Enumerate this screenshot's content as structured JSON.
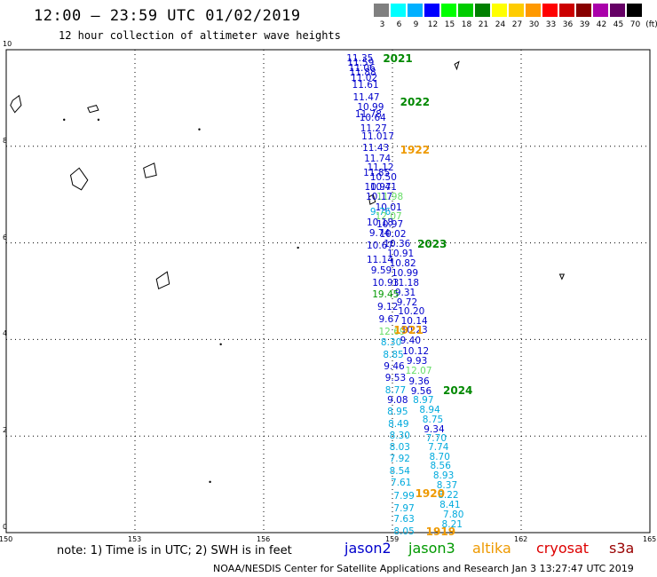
{
  "title": "12:00 — 23:59 UTC 01/02/2019",
  "subtitle": "12 hour collection of altimeter wave heights",
  "colorbar": {
    "unit_label": "(ft)",
    "bins": [
      {
        "label": "3",
        "color": "#808080"
      },
      {
        "label": "6",
        "color": "#00ffff"
      },
      {
        "label": "9",
        "color": "#00b0ff"
      },
      {
        "label": "12",
        "color": "#0000ff"
      },
      {
        "label": "15",
        "color": "#00ff00"
      },
      {
        "label": "18",
        "color": "#00cc00"
      },
      {
        "label": "21",
        "color": "#008000"
      },
      {
        "label": "24",
        "color": "#ffff00"
      },
      {
        "label": "27",
        "color": "#ffcc00"
      },
      {
        "label": "30",
        "color": "#ff9900"
      },
      {
        "label": "33",
        "color": "#ff0000"
      },
      {
        "label": "36",
        "color": "#cc0000"
      },
      {
        "label": "39",
        "color": "#880000"
      },
      {
        "label": "42",
        "color": "#aa00aa"
      },
      {
        "label": "45",
        "color": "#660066"
      },
      {
        "label": "70",
        "color": "#000000"
      }
    ]
  },
  "axes": {
    "lon_ticks": [
      "150",
      "153",
      "156",
      "159",
      "162",
      "165"
    ],
    "lat_ticks": [
      "0",
      "2",
      "4",
      "6",
      "8",
      "10"
    ]
  },
  "readings": [
    {
      "lon": 157.95,
      "lat": 9.82,
      "v": "11.35",
      "c": "#0000cc"
    },
    {
      "lon": 157.97,
      "lat": 9.72,
      "v": "11.59",
      "c": "#0000cc"
    },
    {
      "lon": 158.0,
      "lat": 9.62,
      "v": "11.06",
      "c": "#0000cc"
    },
    {
      "lon": 158.02,
      "lat": 9.52,
      "v": "11.88",
      "c": "#0000cc"
    },
    {
      "lon": 158.05,
      "lat": 9.42,
      "v": "11.02",
      "c": "#0000cc"
    },
    {
      "lon": 158.08,
      "lat": 9.27,
      "v": "11.61",
      "c": "#0000cc"
    },
    {
      "lon": 158.1,
      "lat": 9.0,
      "v": "11.47",
      "c": "#0000cc"
    },
    {
      "lon": 158.2,
      "lat": 8.8,
      "v": "10.99",
      "c": "#0000cc"
    },
    {
      "lon": 158.15,
      "lat": 8.65,
      "v": "11.78",
      "c": "#0000cc"
    },
    {
      "lon": 158.25,
      "lat": 8.58,
      "v": "10.64",
      "c": "#0000cc"
    },
    {
      "lon": 158.27,
      "lat": 8.37,
      "v": "11.27",
      "c": "#0000cc"
    },
    {
      "lon": 158.3,
      "lat": 8.2,
      "v": "11.017",
      "c": "#0000cc"
    },
    {
      "lon": 158.32,
      "lat": 7.96,
      "v": "11.43",
      "c": "#0000cc"
    },
    {
      "lon": 158.36,
      "lat": 7.73,
      "v": "11.74",
      "c": "#0000cc"
    },
    {
      "lon": 158.43,
      "lat": 7.55,
      "v": "11.12",
      "c": "#0000cc"
    },
    {
      "lon": 158.34,
      "lat": 7.45,
      "v": "11.85",
      "c": "#0000cc"
    },
    {
      "lon": 158.5,
      "lat": 7.35,
      "v": "10.50",
      "c": "#0000cc"
    },
    {
      "lon": 158.5,
      "lat": 7.15,
      "v": "10.41",
      "c": "#0000cc"
    },
    {
      "lon": 158.37,
      "lat": 7.15,
      "v": "10.97",
      "c": "#0000cc"
    },
    {
      "lon": 158.65,
      "lat": 6.95,
      "v": "11.98",
      "c": "#66dd66"
    },
    {
      "lon": 158.4,
      "lat": 6.95,
      "v": "10.17",
      "c": "#0000cc"
    },
    {
      "lon": 158.62,
      "lat": 6.73,
      "v": "10.01",
      "c": "#0000cc"
    },
    {
      "lon": 158.5,
      "lat": 6.63,
      "v": "9.76",
      "c": "#00aadd"
    },
    {
      "lon": 158.62,
      "lat": 6.55,
      "v": "12.07",
      "c": "#66dd66"
    },
    {
      "lon": 158.65,
      "lat": 6.37,
      "v": "10.97",
      "c": "#0000cc"
    },
    {
      "lon": 158.42,
      "lat": 6.41,
      "v": "10.18",
      "c": "#0000cc"
    },
    {
      "lon": 158.72,
      "lat": 6.17,
      "v": "10.02",
      "c": "#0000cc"
    },
    {
      "lon": 158.48,
      "lat": 6.2,
      "v": "9.74",
      "c": "#0000cc"
    },
    {
      "lon": 158.82,
      "lat": 5.97,
      "v": "10.36",
      "c": "#0000cc"
    },
    {
      "lon": 158.42,
      "lat": 5.93,
      "v": "10.67",
      "c": "#0000cc"
    },
    {
      "lon": 158.9,
      "lat": 5.77,
      "v": "10.91",
      "c": "#0000cc"
    },
    {
      "lon": 158.42,
      "lat": 5.65,
      "v": "11.14",
      "c": "#0000cc"
    },
    {
      "lon": 158.95,
      "lat": 5.57,
      "v": "10.82",
      "c": "#0000cc"
    },
    {
      "lon": 158.52,
      "lat": 5.42,
      "v": "9.59",
      "c": "#0000cc"
    },
    {
      "lon": 159.0,
      "lat": 5.37,
      "v": "10.99",
      "c": "#0000cc"
    },
    {
      "lon": 159.02,
      "lat": 5.17,
      "v": "11.18",
      "c": "#0000cc"
    },
    {
      "lon": 158.55,
      "lat": 5.17,
      "v": "10.93",
      "c": "#0000cc"
    },
    {
      "lon": 159.08,
      "lat": 4.97,
      "v": "9.31",
      "c": "#0000cc"
    },
    {
      "lon": 158.55,
      "lat": 4.93,
      "v": "19.45",
      "c": "#009900"
    },
    {
      "lon": 159.12,
      "lat": 4.77,
      "v": "9.72",
      "c": "#0000cc"
    },
    {
      "lon": 158.67,
      "lat": 4.67,
      "v": "9.12",
      "c": "#0000cc"
    },
    {
      "lon": 159.15,
      "lat": 4.57,
      "v": "10.20",
      "c": "#0000cc"
    },
    {
      "lon": 158.7,
      "lat": 4.42,
      "v": "9.67",
      "c": "#0000cc"
    },
    {
      "lon": 159.22,
      "lat": 4.37,
      "v": "10.14",
      "c": "#0000cc"
    },
    {
      "lon": 158.7,
      "lat": 4.15,
      "v": "12.69",
      "c": "#66dd66"
    },
    {
      "lon": 159.22,
      "lat": 4.2,
      "v": "10.23",
      "c": "#0000cc"
    },
    {
      "lon": 158.75,
      "lat": 3.93,
      "v": "8.30",
      "c": "#00aadd"
    },
    {
      "lon": 159.2,
      "lat": 3.97,
      "v": "9.40",
      "c": "#0000cc"
    },
    {
      "lon": 159.25,
      "lat": 3.75,
      "v": "10.12",
      "c": "#0000cc"
    },
    {
      "lon": 158.8,
      "lat": 3.68,
      "v": "8.85",
      "c": "#00aadd"
    },
    {
      "lon": 159.35,
      "lat": 3.55,
      "v": "9.93",
      "c": "#0000cc"
    },
    {
      "lon": 158.82,
      "lat": 3.43,
      "v": "9.46",
      "c": "#0000cc"
    },
    {
      "lon": 159.32,
      "lat": 3.35,
      "v": "12.07",
      "c": "#66dd66"
    },
    {
      "lon": 158.85,
      "lat": 3.2,
      "v": "9.53",
      "c": "#0000cc"
    },
    {
      "lon": 159.4,
      "lat": 3.13,
      "v": "9.36",
      "c": "#0000cc"
    },
    {
      "lon": 158.85,
      "lat": 2.95,
      "v": "8.77",
      "c": "#00aadd"
    },
    {
      "lon": 159.45,
      "lat": 2.93,
      "v": "9.56",
      "c": "#0000cc"
    },
    {
      "lon": 158.9,
      "lat": 2.73,
      "v": "9.08",
      "c": "#0000cc"
    },
    {
      "lon": 159.5,
      "lat": 2.73,
      "v": "8.97",
      "c": "#00aadd"
    },
    {
      "lon": 158.9,
      "lat": 2.5,
      "v": "8.95",
      "c": "#00aadd"
    },
    {
      "lon": 159.65,
      "lat": 2.53,
      "v": "8.94",
      "c": "#00aadd"
    },
    {
      "lon": 159.72,
      "lat": 2.33,
      "v": "8.75",
      "c": "#00aadd"
    },
    {
      "lon": 158.92,
      "lat": 2.25,
      "v": "8.49",
      "c": "#00aadd"
    },
    {
      "lon": 159.75,
      "lat": 2.13,
      "v": "9.34",
      "c": "#0000cc"
    },
    {
      "lon": 158.95,
      "lat": 2.0,
      "v": "8.30",
      "c": "#00aadd"
    },
    {
      "lon": 159.8,
      "lat": 1.95,
      "v": "7.70",
      "c": "#00aadd"
    },
    {
      "lon": 158.95,
      "lat": 1.77,
      "v": "8.03",
      "c": "#00aadd"
    },
    {
      "lon": 159.85,
      "lat": 1.77,
      "v": "7.74",
      "c": "#00aadd"
    },
    {
      "lon": 158.95,
      "lat": 1.52,
      "v": "7.92",
      "c": "#00aadd"
    },
    {
      "lon": 159.88,
      "lat": 1.57,
      "v": "8.70",
      "c": "#00aadd"
    },
    {
      "lon": 159.9,
      "lat": 1.37,
      "v": "8.56",
      "c": "#00aadd"
    },
    {
      "lon": 158.95,
      "lat": 1.27,
      "v": "8.54",
      "c": "#00aadd"
    },
    {
      "lon": 159.97,
      "lat": 1.17,
      "v": "8.93",
      "c": "#00aadd"
    },
    {
      "lon": 158.98,
      "lat": 1.03,
      "v": "7.61",
      "c": "#00aadd"
    },
    {
      "lon": 160.05,
      "lat": 0.97,
      "v": "8.37",
      "c": "#00aadd"
    },
    {
      "lon": 160.08,
      "lat": 0.77,
      "v": "8.22",
      "c": "#00aadd"
    },
    {
      "lon": 159.05,
      "lat": 0.75,
      "v": "7.99",
      "c": "#00aadd"
    },
    {
      "lon": 160.12,
      "lat": 0.57,
      "v": "8.41",
      "c": "#00aadd"
    },
    {
      "lon": 159.05,
      "lat": 0.5,
      "v": "7.97",
      "c": "#00aadd"
    },
    {
      "lon": 160.2,
      "lat": 0.37,
      "v": "7.80",
      "c": "#00aadd"
    },
    {
      "lon": 159.05,
      "lat": 0.27,
      "v": "7.63",
      "c": "#00aadd"
    },
    {
      "lon": 160.17,
      "lat": 0.17,
      "v": "8.21",
      "c": "#00aadd"
    },
    {
      "lon": 159.05,
      "lat": 0.02,
      "v": "8.05",
      "c": "#00aadd"
    }
  ],
  "time_labels": [
    {
      "lon": 158.8,
      "lat": 9.82,
      "t": "2021",
      "c": "#008800"
    },
    {
      "lon": 159.2,
      "lat": 8.92,
      "t": "2022",
      "c": "#008800"
    },
    {
      "lon": 159.2,
      "lat": 7.92,
      "t": "1922",
      "c": "#ee9900"
    },
    {
      "lon": 159.6,
      "lat": 5.97,
      "t": "2023",
      "c": "#008800"
    },
    {
      "lon": 159.05,
      "lat": 4.2,
      "t": "1921",
      "c": "#ee9900"
    },
    {
      "lon": 160.2,
      "lat": 2.95,
      "t": "2024",
      "c": "#008800"
    },
    {
      "lon": 159.55,
      "lat": 0.8,
      "t": "1920",
      "c": "#ee9900"
    },
    {
      "lon": 159.8,
      "lat": 0.02,
      "t": "1919",
      "c": "#ee9900"
    }
  ],
  "note": "note:  1) Time is in UTC;  2) SWH is in feet",
  "satellites": [
    {
      "name": "jason2",
      "color": "#0000cc"
    },
    {
      "name": "jason3",
      "color": "#009900"
    },
    {
      "name": "altika",
      "color": "#ee9900"
    },
    {
      "name": "cryosat",
      "color": "#dd0000"
    },
    {
      "name": "s3a",
      "color": "#990000"
    }
  ],
  "footer": "NOAA/NESDIS Center for Satellite Applications and Research    Jan  3 13:27:47 UTC 2019"
}
